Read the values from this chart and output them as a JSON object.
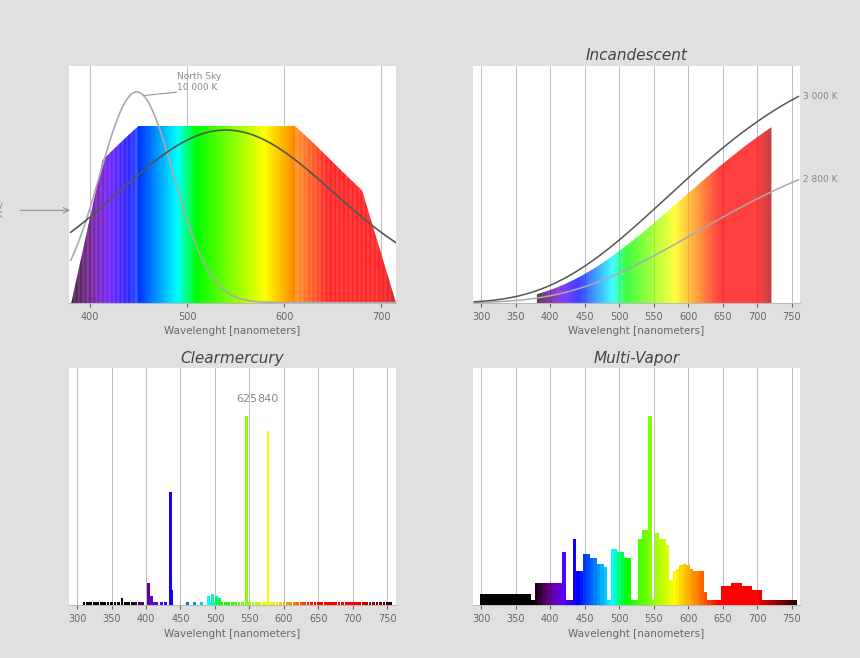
{
  "background_color": "#e0e0e0",
  "subplot_titles": [
    "",
    "Incandescent",
    "Clearmercury",
    "Multi-Vapor"
  ],
  "xlabel": "Wavelenght [nanometers]",
  "sun_xlim": [
    378,
    715
  ],
  "sun_xticks": [
    400,
    500,
    600,
    700
  ],
  "wide_xlim": [
    288,
    762
  ],
  "wide_xticks": [
    300,
    350,
    400,
    450,
    500,
    550,
    600,
    650,
    700,
    750
  ],
  "grid_color": "#bbbbbb",
  "axis_bg": "#ffffff",
  "text_color": "#666666",
  "annotation_color": "#888888",
  "curve_color_light": "#aaaaaa",
  "curve_color_dark": "#555555"
}
